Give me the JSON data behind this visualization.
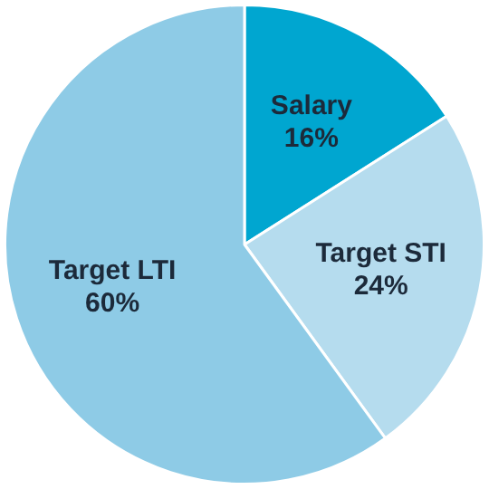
{
  "chart_data": {
    "type": "pie",
    "categories": [
      "Salary",
      "Target STI",
      "Target LTI"
    ],
    "values": [
      16,
      24,
      60
    ],
    "colors": [
      "#00a6d0",
      "#b5dcee",
      "#8ecbe6"
    ],
    "value_labels": [
      "16%",
      "24%",
      "60%"
    ],
    "legend": false
  }
}
